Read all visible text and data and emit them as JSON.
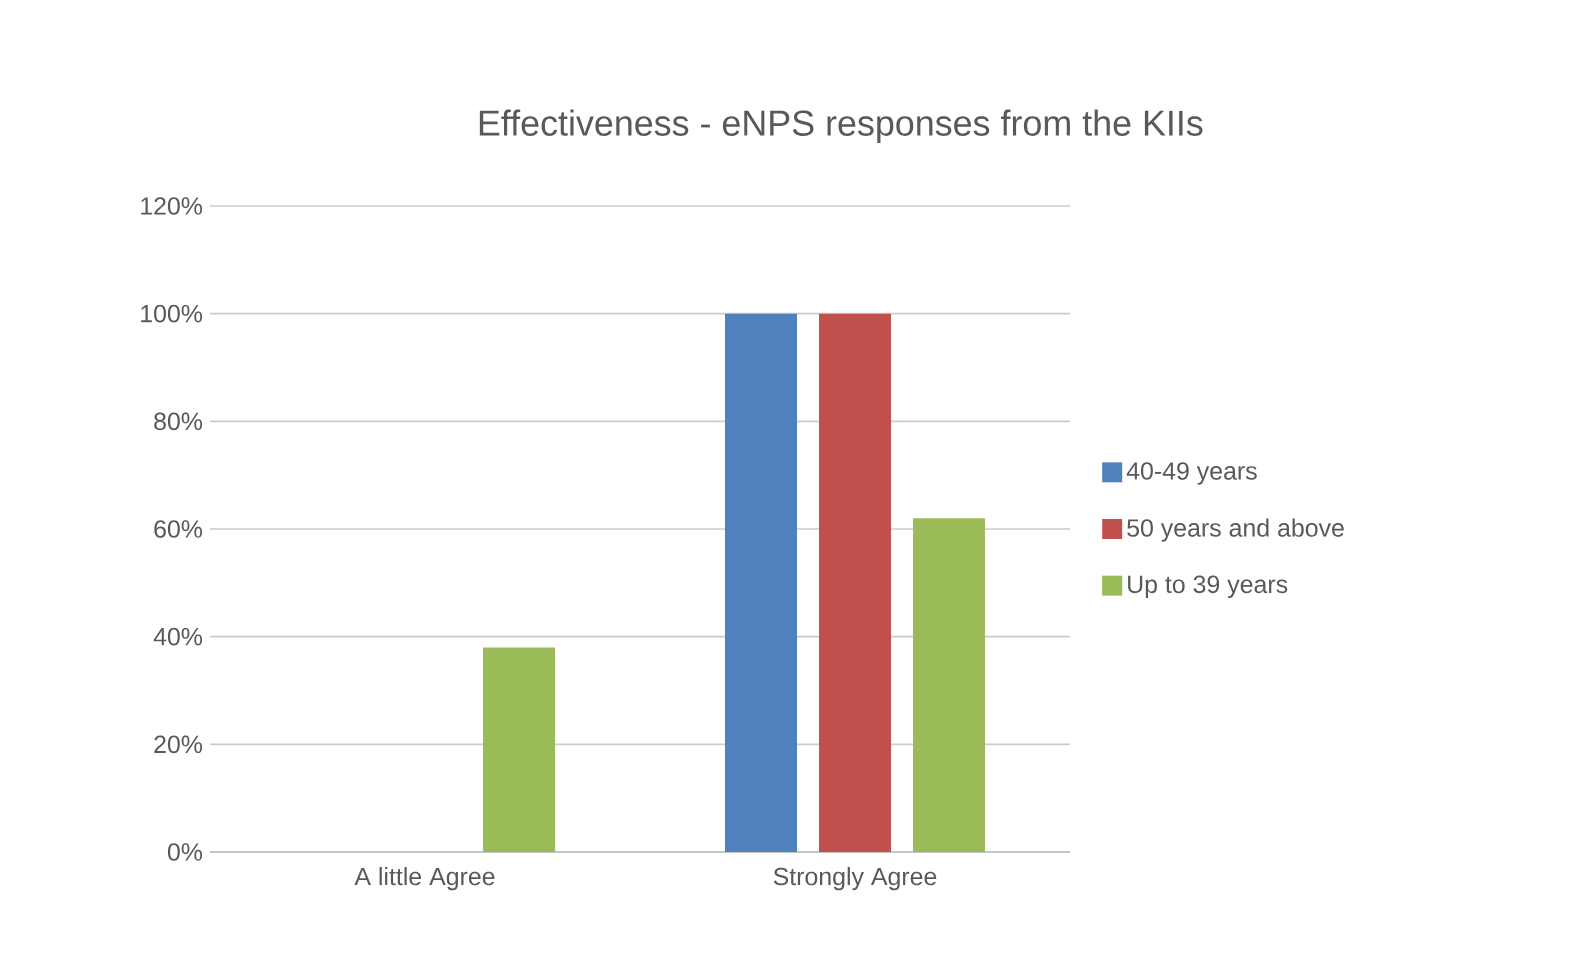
{
  "chart_data": {
    "type": "bar",
    "title": "Effectiveness - eNPS responses from the KIIs",
    "categories": [
      "A little Agree",
      "Strongly Agree"
    ],
    "series": [
      {
        "name": "40-49 years",
        "color": "#4f81bd",
        "values": [
          0,
          100
        ]
      },
      {
        "name": "50 years and above",
        "color": "#c0504d",
        "values": [
          0,
          100
        ]
      },
      {
        "name": "Up to 39 years",
        "color": "#9bbb59",
        "values": [
          38,
          62
        ]
      }
    ],
    "ylim": [
      0,
      120
    ],
    "yticks": [
      {
        "value": 0,
        "label": "0%"
      },
      {
        "value": 20,
        "label": "20%"
      },
      {
        "value": 40,
        "label": "40%"
      },
      {
        "value": 60,
        "label": "60%"
      },
      {
        "value": 80,
        "label": "80%"
      },
      {
        "value": 100,
        "label": "100%"
      },
      {
        "value": 120,
        "label": "120%"
      }
    ],
    "grid": "y",
    "legend": "right"
  }
}
